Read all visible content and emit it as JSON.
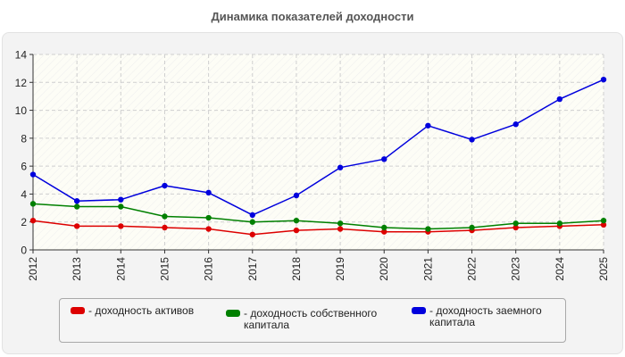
{
  "chart_data": {
    "type": "line",
    "title": "Динамика показателей доходности",
    "x": [
      "2012",
      "2013",
      "2014",
      "2015",
      "2016",
      "2017",
      "2018",
      "2019",
      "2020",
      "2021",
      "2022",
      "2023",
      "2024",
      "2025"
    ],
    "ylim": [
      0,
      14
    ],
    "yticks": [
      0,
      2,
      4,
      6,
      8,
      10,
      12,
      14
    ],
    "grid": true,
    "legend": "bottom",
    "series": [
      {
        "name": "- доходность активов",
        "color": "#dd0000",
        "values": [
          2.1,
          1.7,
          1.7,
          1.6,
          1.5,
          1.1,
          1.4,
          1.5,
          1.3,
          1.3,
          1.4,
          1.6,
          1.7,
          1.8
        ]
      },
      {
        "name": "- доходность собственного капитала",
        "color": "#008000",
        "values": [
          3.3,
          3.1,
          3.1,
          2.4,
          2.3,
          2.0,
          2.1,
          1.9,
          1.6,
          1.5,
          1.6,
          1.9,
          1.9,
          2.1
        ]
      },
      {
        "name": "- доходность заемного капитала",
        "color": "#0000dd",
        "values": [
          5.4,
          3.5,
          3.6,
          4.6,
          4.1,
          2.5,
          3.9,
          5.9,
          6.5,
          8.9,
          7.9,
          9.0,
          10.8,
          12.2
        ]
      }
    ]
  }
}
